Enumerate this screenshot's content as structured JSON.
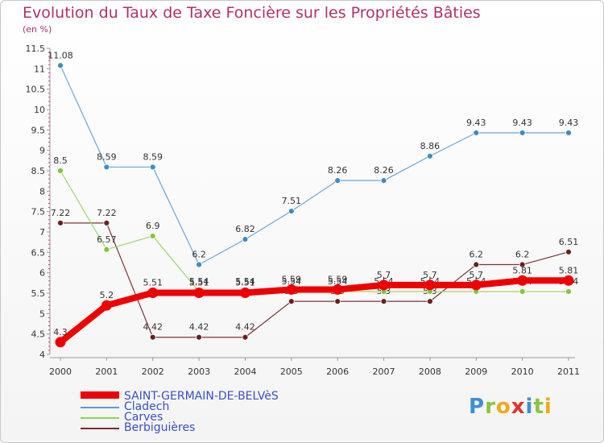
{
  "header": {
    "title": "Evolution du Taux de Taxe Foncière sur les Propriétés Bâties",
    "unit": "(en %)"
  },
  "logo": {
    "text": "Proxiti"
  },
  "legend": {
    "items": [
      {
        "label": "SAINT-GERMAIN-DE-BELVèS",
        "color": "#ee0000",
        "thick": true
      },
      {
        "label": "Cladech",
        "color": "#5b9bd5",
        "thick": false
      },
      {
        "label": "Carves",
        "color": "#8bd74d",
        "thick": false
      },
      {
        "label": "Berbiguières",
        "color": "#7a2a2a",
        "thick": false
      }
    ]
  },
  "chart_data": {
    "type": "line",
    "title": "Evolution du Taux de Taxe Foncière sur les Propriétés Bâties",
    "ylabel": "(en %)",
    "xlabel": "",
    "ylim": [
      4,
      11.5
    ],
    "yticks": [
      "4",
      "4.5",
      "5",
      "5.5",
      "6",
      "6.5",
      "7",
      "7.5",
      "8",
      "8.5",
      "9",
      "9.5",
      "10",
      "10.5",
      "11",
      "11.5"
    ],
    "categories": [
      "2000",
      "2001",
      "2002",
      "2003",
      "2004",
      "2005",
      "2006",
      "2007",
      "2008",
      "2009",
      "2010",
      "2011"
    ],
    "series": [
      {
        "name": "Berbiguières",
        "color": "#6b1f1f",
        "line": "#7a3535",
        "width": 1.2,
        "values": [
          7.22,
          7.22,
          4.42,
          4.42,
          4.42,
          5.3,
          5.3,
          5.3,
          5.3,
          6.2,
          6.2,
          6.51
        ],
        "labels": [
          "7.22",
          "7.22",
          "4.42",
          "4.42",
          "4.42",
          "5.3",
          "5.3",
          "5.3",
          "5.3",
          "6.2",
          "6.2",
          "6.51"
        ]
      },
      {
        "name": "Carves",
        "color": "#7cc73b",
        "line": "#9ad86a",
        "width": 1.2,
        "values": [
          8.5,
          6.57,
          6.9,
          5.54,
          5.54,
          5.54,
          5.54,
          5.54,
          5.54,
          5.54,
          5.54,
          5.54
        ],
        "labels": [
          "8.5",
          "6.57",
          "6.9",
          "5.54",
          "5.54",
          "5.54",
          "5.54",
          "5.54",
          "5.54",
          "5.54",
          "5.54",
          "5.54"
        ]
      },
      {
        "name": "Cladech",
        "color": "#3d8cc8",
        "line": "#6aa6d6",
        "width": 1.2,
        "values": [
          11.08,
          8.59,
          8.59,
          6.2,
          6.82,
          7.51,
          8.26,
          8.26,
          8.86,
          9.43,
          9.43,
          9.43
        ],
        "labels": [
          "11.08",
          "8.59",
          "8.59",
          "6.2",
          "6.82",
          "7.51",
          "8.26",
          "8.26",
          "8.86",
          "9.43",
          "9.43",
          "9.43"
        ]
      },
      {
        "name": "SAINT-GERMAIN-DE-BELVèS",
        "color": "#ee0000",
        "line": "#ee0000",
        "width": 8,
        "values": [
          4.3,
          5.2,
          5.51,
          5.51,
          5.51,
          5.59,
          5.59,
          5.7,
          5.7,
          5.7,
          5.81,
          5.81
        ],
        "labels": [
          "4.3",
          "5.2",
          "5.51",
          "5.51",
          "5.51",
          "5.59",
          "5.59",
          "5.7",
          "5.7",
          "5.7",
          "5.81",
          "5.81"
        ]
      }
    ]
  }
}
